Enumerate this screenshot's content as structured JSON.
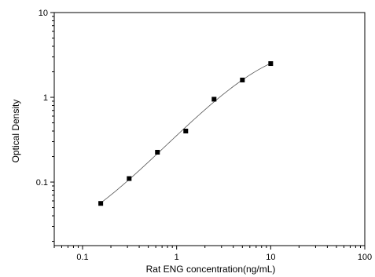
{
  "chart_data": {
    "type": "scatter",
    "title": "",
    "xlabel": "Rat ENG concentration(ng/mL)",
    "ylabel": "Optical Density",
    "xscale": "log",
    "yscale": "log",
    "xlim": [
      0.05,
      100
    ],
    "ylim": [
      0.0178,
      10
    ],
    "x_ticks": [
      {
        "value": 0.1,
        "label": "0.1"
      },
      {
        "value": 1,
        "label": "1"
      },
      {
        "value": 10,
        "label": "10"
      },
      {
        "value": 100,
        "label": "100"
      }
    ],
    "y_ticks": [
      {
        "value": 0.1,
        "label": "0.1"
      },
      {
        "value": 1,
        "label": "1"
      },
      {
        "value": 10,
        "label": "10"
      }
    ],
    "grid": false,
    "series": [
      {
        "x": [
          0.156,
          0.313,
          0.625,
          1.25,
          2.5,
          5,
          10
        ],
        "y": [
          0.056,
          0.11,
          0.225,
          0.4,
          0.95,
          1.6,
          2.5
        ]
      }
    ],
    "fit_curve": true
  }
}
